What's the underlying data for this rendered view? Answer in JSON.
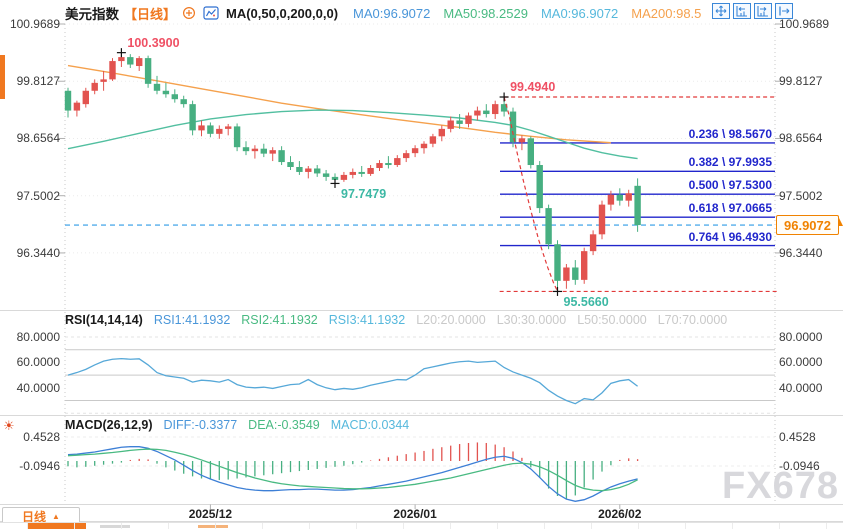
{
  "colors": {
    "up_candle": "#e2534f",
    "down_candle": "#47af81",
    "ma200_line": "#f5a14d",
    "ma50_line": "#52bfa0",
    "fib_blue": "#2126cc",
    "high_label": "#ef5064",
    "low_label": "#3cb8a4",
    "current_price_orange": "#f08200",
    "dashed_red": "#e23a3a",
    "dashed_blue": "#2e9be6",
    "rsi_line": "#56a8d8",
    "diff_line": "#3d7fd6",
    "dea_line": "#49ba82",
    "hist_pos": "#e2534f",
    "hist_neg": "#47af81",
    "grid_light": "#ebebeb",
    "grid_solid": "#c9c9c9",
    "period_orange": "#f07820"
  },
  "header": {
    "title": "美元指数",
    "period": "【日线】",
    "ma_group": "MA(0,50,0,200,0,0)",
    "ma_items": [
      {
        "text": "MA0:96.9072",
        "color": "#4a96d9"
      },
      {
        "text": "MA50:98.2529",
        "color": "#49ba82"
      },
      {
        "text": "MA0:96.9072",
        "color": "#56b8dc"
      },
      {
        "text": "MA200:98.5",
        "color": "#f5a14d"
      }
    ],
    "tool_icons": [
      "crosshair-move",
      "scale-left",
      "scale-right",
      "shift-right"
    ]
  },
  "x_axis": {
    "period_label": "日线",
    "dates": [
      "2025/12",
      "2026/01",
      "2026/02"
    ]
  },
  "watermark": "FX678",
  "chart_data": [
    {
      "type": "candlestick",
      "title": "美元指数 日线",
      "y_axis_labels": [
        "100.9689",
        "99.8127",
        "98.6564",
        "97.5002",
        "96.3440"
      ],
      "y_axis_values": [
        100.9689,
        99.8127,
        98.6564,
        97.5002,
        96.344
      ],
      "x_dates": [
        {
          "label": "2025/12",
          "index": 16
        },
        {
          "label": "2026/01",
          "index": 39
        },
        {
          "label": "2026/02",
          "index": 62
        }
      ],
      "candles": [
        [
          99.62,
          99.68,
          99.08,
          99.22
        ],
        [
          99.22,
          99.42,
          99.1,
          99.38
        ],
        [
          99.35,
          99.68,
          99.28,
          99.62
        ],
        [
          99.62,
          99.85,
          99.55,
          99.78
        ],
        [
          99.8,
          100.02,
          99.62,
          99.85
        ],
        [
          99.85,
          100.28,
          99.82,
          100.22
        ],
        [
          100.22,
          100.39,
          100.1,
          100.3
        ],
        [
          100.3,
          100.36,
          100.08,
          100.15
        ],
        [
          100.12,
          100.32,
          100.02,
          100.28
        ],
        [
          100.28,
          100.33,
          99.68,
          99.76
        ],
        [
          99.76,
          99.92,
          99.55,
          99.62
        ],
        [
          99.62,
          99.78,
          99.48,
          99.55
        ],
        [
          99.55,
          99.65,
          99.38,
          99.45
        ],
        [
          99.45,
          99.52,
          99.28,
          99.35
        ],
        [
          99.35,
          99.42,
          98.72,
          98.82
        ],
        [
          98.82,
          99.02,
          98.7,
          98.92
        ],
        [
          98.92,
          98.98,
          98.68,
          98.75
        ],
        [
          98.75,
          98.92,
          98.65,
          98.85
        ],
        [
          98.85,
          98.95,
          98.72,
          98.9
        ],
        [
          98.9,
          98.96,
          98.4,
          98.48
        ],
        [
          98.48,
          98.6,
          98.32,
          98.4
        ],
        [
          98.4,
          98.52,
          98.25,
          98.45
        ],
        [
          98.45,
          98.55,
          98.28,
          98.35
        ],
        [
          98.35,
          98.48,
          98.2,
          98.42
        ],
        [
          98.42,
          98.5,
          98.12,
          98.18
        ],
        [
          98.18,
          98.3,
          98.02,
          98.08
        ],
        [
          98.08,
          98.2,
          97.92,
          97.98
        ],
        [
          97.98,
          98.1,
          97.85,
          98.05
        ],
        [
          98.05,
          98.12,
          97.88,
          97.95
        ],
        [
          97.95,
          98.02,
          97.8,
          97.88
        ],
        [
          97.88,
          97.95,
          97.7479,
          97.82
        ],
        [
          97.82,
          97.98,
          97.78,
          97.92
        ],
        [
          97.92,
          98.05,
          97.85,
          97.98
        ],
        [
          97.98,
          98.1,
          97.88,
          97.94
        ],
        [
          97.94,
          98.12,
          97.9,
          98.06
        ],
        [
          98.06,
          98.22,
          98.0,
          98.16
        ],
        [
          98.16,
          98.3,
          98.05,
          98.12
        ],
        [
          98.12,
          98.32,
          98.08,
          98.26
        ],
        [
          98.26,
          98.42,
          98.18,
          98.36
        ],
        [
          98.36,
          98.52,
          98.28,
          98.46
        ],
        [
          98.46,
          98.6,
          98.35,
          98.55
        ],
        [
          98.55,
          98.75,
          98.48,
          98.7
        ],
        [
          98.7,
          98.92,
          98.6,
          98.85
        ],
        [
          98.85,
          99.1,
          98.78,
          99.02
        ],
        [
          99.02,
          99.15,
          98.85,
          98.95
        ],
        [
          98.95,
          99.18,
          98.88,
          99.12
        ],
        [
          99.12,
          99.3,
          99.02,
          99.22
        ],
        [
          99.22,
          99.35,
          99.08,
          99.15
        ],
        [
          99.15,
          99.42,
          99.05,
          99.35
        ],
        [
          99.35,
          99.494,
          99.1,
          99.2
        ],
        [
          99.2,
          99.28,
          98.48,
          98.58
        ],
        [
          98.58,
          98.72,
          98.42,
          98.66
        ],
        [
          98.66,
          98.7,
          98.05,
          98.12
        ],
        [
          98.12,
          98.2,
          97.15,
          97.25
        ],
        [
          97.25,
          97.32,
          96.42,
          96.52
        ],
        [
          96.52,
          96.6,
          95.566,
          95.78
        ],
        [
          95.78,
          96.12,
          95.62,
          96.05
        ],
        [
          96.05,
          96.2,
          95.7,
          95.8
        ],
        [
          95.8,
          96.45,
          95.72,
          96.38
        ],
        [
          96.38,
          96.8,
          96.3,
          96.72
        ],
        [
          96.72,
          97.4,
          96.62,
          97.32
        ],
        [
          97.32,
          97.6,
          97.2,
          97.52
        ],
        [
          97.52,
          97.65,
          97.3,
          97.4
        ],
        [
          97.4,
          97.62,
          97.28,
          97.55
        ],
        [
          97.7,
          97.85,
          96.77,
          96.9072
        ]
      ],
      "ma": [
        {
          "name": "MA200",
          "color": "#f5a14d",
          "points": [
            [
              0,
              100.13
            ],
            [
              5,
              99.98
            ],
            [
              10,
              99.82
            ],
            [
              15,
              99.66
            ],
            [
              20,
              99.5
            ],
            [
              24,
              99.37
            ],
            [
              28,
              99.26
            ],
            [
              32,
              99.16
            ],
            [
              36,
              99.06
            ],
            [
              40,
              98.97
            ],
            [
              44,
              98.88
            ],
            [
              48,
              98.78
            ],
            [
              52,
              98.7
            ],
            [
              56,
              98.63
            ],
            [
              61,
              98.57
            ]
          ]
        },
        {
          "name": "MA50",
          "color": "#52bfa0",
          "points": [
            [
              0,
              98.45
            ],
            [
              4,
              98.6
            ],
            [
              8,
              98.76
            ],
            [
              12,
              98.92
            ],
            [
              16,
              99.05
            ],
            [
              20,
              99.14
            ],
            [
              24,
              99.2
            ],
            [
              28,
              99.23
            ],
            [
              32,
              99.22
            ],
            [
              36,
              99.18
            ],
            [
              40,
              99.13
            ],
            [
              44,
              99.07
            ],
            [
              48,
              98.98
            ],
            [
              50,
              98.92
            ],
            [
              52,
              98.82
            ],
            [
              54,
              98.7
            ],
            [
              56,
              98.58
            ],
            [
              58,
              98.46
            ],
            [
              60,
              98.37
            ],
            [
              62,
              98.3
            ],
            [
              64,
              98.25
            ]
          ]
        }
      ],
      "fib_levels": [
        {
          "label": "0.236 \\ 98.5670",
          "price": 98.567
        },
        {
          "label": "0.382 \\ 97.9935",
          "price": 97.9935
        },
        {
          "label": "0.500 \\ 97.5300",
          "price": 97.53
        },
        {
          "label": "0.618 \\ 97.0665",
          "price": 97.0665
        },
        {
          "label": "0.764 \\ 96.4930",
          "price": 96.493
        }
      ],
      "annotations": [
        {
          "text": "100.3900",
          "index": 6,
          "price": 100.39,
          "kind": "high"
        },
        {
          "text": "99.4940",
          "index": 49,
          "price": 99.494,
          "kind": "high"
        },
        {
          "text": "97.7479",
          "index": 30,
          "price": 97.7479,
          "kind": "low"
        },
        {
          "text": "95.5660",
          "index": 55,
          "price": 95.566,
          "kind": "low"
        }
      ],
      "resistance_dashed": {
        "price": 99.494,
        "from_index": 49
      },
      "support_dashed": {
        "price": 95.566,
        "from_index": 48.5
      },
      "trend_line": [
        [
          49,
          99.494
        ],
        [
          49.6,
          99.1
        ],
        [
          50.3,
          98.5
        ],
        [
          51.1,
          97.85
        ],
        [
          52,
          97.2
        ],
        [
          52.9,
          96.6
        ],
        [
          53.9,
          96.05
        ],
        [
          54.6,
          95.72
        ],
        [
          55,
          95.57
        ]
      ],
      "current_price": {
        "label": "96.9072",
        "value": 96.9072
      }
    },
    {
      "type": "line",
      "name": "RSI(14,14,14)",
      "legend": [
        {
          "text": "RSI1:41.1932",
          "color": "#4a96d9"
        },
        {
          "text": "RSI2:41.1932",
          "color": "#49ba82"
        },
        {
          "text": "RSI3:41.1932",
          "color": "#56b8dc"
        }
      ],
      "level_labels": [
        {
          "text": "L20:20.0000",
          "color": "#c9c9c9"
        },
        {
          "text": "L30:30.0000",
          "color": "#c9c9c9"
        },
        {
          "text": "L50:50.0000",
          "color": "#c9c9c9"
        },
        {
          "text": "L70:70.0000",
          "color": "#c9c9c9"
        }
      ],
      "axis_labels": [
        "80.0000",
        "60.0000",
        "40.0000"
      ],
      "axis_values": [
        80,
        60,
        40
      ],
      "solid_grid_levels": [
        70,
        50,
        30
      ],
      "dashed_grid_levels": [
        80,
        20
      ],
      "ylim": [
        20,
        80
      ],
      "values": [
        50,
        52,
        54.5,
        58,
        61,
        62.5,
        63,
        62.5,
        62.8,
        58,
        52,
        49.5,
        48.5,
        47.5,
        44.5,
        46,
        45.5,
        44.5,
        46.5,
        42.5,
        40.5,
        40,
        40.5,
        39.5,
        41,
        42.5,
        43,
        46.5,
        42.5,
        40,
        38.5,
        39.5,
        38.8,
        40,
        42,
        43.5,
        45,
        46.5,
        46.2,
        50,
        55,
        56.5,
        58,
        59.5,
        60.5,
        61,
        60,
        60.5,
        61,
        56,
        52.5,
        50,
        47.5,
        44,
        38,
        33.5,
        30,
        27.5,
        31.5,
        30.5,
        36,
        43.5,
        45.5,
        46.5,
        41.19
      ]
    },
    {
      "type": "macd",
      "name": "MACD(26,12,9)",
      "legend": [
        {
          "text": "DIFF:-0.3377",
          "color": "#4a96d9"
        },
        {
          "text": "DEA:-0.3549",
          "color": "#49ba82"
        },
        {
          "text": "MACD:0.0344",
          "color": "#56b8dc"
        }
      ],
      "axis_labels": [
        "0.4528",
        "-0.0946"
      ],
      "axis_values": [
        0.4528,
        -0.0946
      ],
      "diff": [
        0.12,
        0.13,
        0.15,
        0.17,
        0.2,
        0.23,
        0.26,
        0.27,
        0.27,
        0.24,
        0.18,
        0.1,
        0.02,
        -0.08,
        -0.18,
        -0.27,
        -0.34,
        -0.4,
        -0.45,
        -0.5,
        -0.53,
        -0.55,
        -0.56,
        -0.56,
        -0.55,
        -0.54,
        -0.54,
        -0.53,
        -0.53,
        -0.54,
        -0.55,
        -0.55,
        -0.54,
        -0.52,
        -0.5,
        -0.47,
        -0.44,
        -0.41,
        -0.38,
        -0.34,
        -0.3,
        -0.26,
        -0.22,
        -0.17,
        -0.12,
        -0.07,
        -0.02,
        0.03,
        0.07,
        0.09,
        0.05,
        -0.03,
        -0.15,
        -0.31,
        -0.48,
        -0.62,
        -0.72,
        -0.76,
        -0.73,
        -0.66,
        -0.57,
        -0.49,
        -0.43,
        -0.38,
        -0.3377
      ],
      "dea": [
        0.1,
        0.11,
        0.12,
        0.13,
        0.145,
        0.16,
        0.18,
        0.2,
        0.215,
        0.225,
        0.22,
        0.2,
        0.165,
        0.125,
        0.075,
        0.02,
        -0.04,
        -0.1,
        -0.16,
        -0.22,
        -0.27,
        -0.32,
        -0.36,
        -0.4,
        -0.43,
        -0.45,
        -0.47,
        -0.48,
        -0.49,
        -0.5,
        -0.51,
        -0.52,
        -0.525,
        -0.525,
        -0.52,
        -0.51,
        -0.5,
        -0.48,
        -0.46,
        -0.44,
        -0.41,
        -0.38,
        -0.35,
        -0.32,
        -0.28,
        -0.24,
        -0.2,
        -0.16,
        -0.12,
        -0.08,
        -0.05,
        -0.04,
        -0.06,
        -0.11,
        -0.18,
        -0.27,
        -0.37,
        -0.46,
        -0.52,
        -0.55,
        -0.56,
        -0.54,
        -0.5,
        -0.44,
        -0.3549
      ],
      "histogram": [
        -0.1,
        -0.12,
        -0.11,
        -0.09,
        -0.07,
        -0.05,
        -0.03,
        0.02,
        0.04,
        0.03,
        -0.05,
        -0.12,
        -0.18,
        -0.24,
        -0.29,
        -0.33,
        -0.35,
        -0.36,
        -0.35,
        -0.33,
        -0.31,
        -0.29,
        -0.27,
        -0.25,
        -0.23,
        -0.21,
        -0.19,
        -0.17,
        -0.15,
        -0.13,
        -0.11,
        -0.09,
        -0.06,
        -0.03,
        0.01,
        0.04,
        0.07,
        0.1,
        0.13,
        0.16,
        0.19,
        0.23,
        0.26,
        0.29,
        0.32,
        0.34,
        0.35,
        0.34,
        0.31,
        0.26,
        0.18,
        0.06,
        -0.12,
        -0.32,
        -0.52,
        -0.66,
        -0.72,
        -0.65,
        -0.5,
        -0.35,
        -0.2,
        -0.08,
        0.02,
        0.05,
        0.0344
      ]
    }
  ]
}
